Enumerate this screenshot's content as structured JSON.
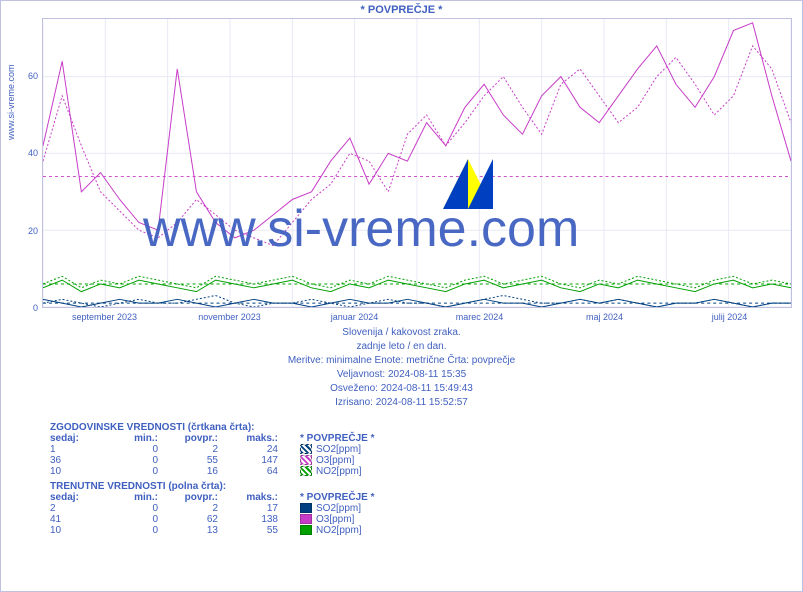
{
  "title": "* POVPREČJE *",
  "side_label": "www.si-vreme.com",
  "chart": {
    "type": "line",
    "ylim": [
      0,
      75
    ],
    "yticks": [
      0,
      20,
      40,
      60
    ],
    "xticks": [
      "september 2023",
      "november 2023",
      "januar 2024",
      "marec 2024",
      "maj 2024",
      "julij 2024"
    ],
    "grid_color": "#e8e8f4",
    "border_color": "#c0c0e0",
    "background_color": "#ffffff",
    "reference_lines": [
      {
        "y": 34,
        "color": "#c83cc8",
        "dash": "3,3"
      },
      {
        "y": 6,
        "color": "#00a000",
        "dash": "3,3"
      },
      {
        "y": 1,
        "color": "#004080",
        "dash": "3,3"
      }
    ],
    "series": [
      {
        "name": "SO2_hist",
        "color": "#004080",
        "dash": "2,2",
        "width": 1,
        "points": [
          1,
          2,
          1,
          0,
          1,
          2,
          1,
          1,
          2,
          3,
          1,
          0,
          1,
          1,
          2,
          1,
          0,
          1,
          2,
          1,
          1,
          0,
          1,
          2,
          3,
          2,
          1,
          1,
          2,
          1,
          2,
          1,
          0,
          1,
          1,
          2,
          1,
          0,
          1,
          1
        ]
      },
      {
        "name": "O3_hist",
        "color": "#c83cc8",
        "dash": "2,2",
        "width": 1,
        "points": [
          38,
          55,
          42,
          30,
          25,
          20,
          18,
          22,
          28,
          24,
          20,
          18,
          16,
          22,
          28,
          32,
          40,
          38,
          30,
          45,
          50,
          42,
          48,
          55,
          60,
          52,
          45,
          58,
          62,
          55,
          48,
          52,
          60,
          65,
          58,
          50,
          55,
          68,
          62,
          48
        ]
      },
      {
        "name": "NO2_hist",
        "color": "#00a000",
        "dash": "2,2",
        "width": 1,
        "points": [
          6,
          8,
          5,
          7,
          6,
          8,
          7,
          6,
          5,
          8,
          7,
          6,
          7,
          8,
          6,
          5,
          7,
          6,
          8,
          7,
          6,
          5,
          7,
          8,
          6,
          7,
          8,
          6,
          5,
          7,
          6,
          8,
          7,
          6,
          5,
          7,
          8,
          6,
          7,
          6
        ]
      },
      {
        "name": "SO2_curr",
        "color": "#004080",
        "dash": "none",
        "width": 1,
        "points": [
          2,
          1,
          0,
          1,
          2,
          1,
          1,
          2,
          1,
          0,
          1,
          2,
          1,
          1,
          0,
          1,
          2,
          1,
          1,
          2,
          1,
          0,
          1,
          2,
          1,
          1,
          0,
          1,
          2,
          1,
          2,
          1,
          0,
          1,
          1,
          2,
          1,
          0,
          1,
          1
        ]
      },
      {
        "name": "O3_curr",
        "color": "#c83cc8",
        "dash": "none",
        "width": 1,
        "points": [
          42,
          64,
          30,
          35,
          28,
          22,
          20,
          62,
          30,
          22,
          18,
          20,
          24,
          28,
          30,
          38,
          44,
          32,
          40,
          38,
          48,
          42,
          52,
          58,
          50,
          45,
          55,
          60,
          52,
          48,
          55,
          62,
          68,
          58,
          52,
          60,
          72,
          74,
          55,
          38
        ]
      },
      {
        "name": "NO2_curr",
        "color": "#00a000",
        "dash": "none",
        "width": 1,
        "points": [
          5,
          7,
          4,
          6,
          5,
          7,
          6,
          5,
          4,
          7,
          6,
          5,
          6,
          7,
          5,
          4,
          6,
          5,
          7,
          6,
          5,
          4,
          6,
          7,
          5,
          6,
          7,
          5,
          4,
          6,
          5,
          7,
          6,
          5,
          4,
          6,
          7,
          5,
          6,
          5
        ]
      }
    ]
  },
  "caption": {
    "l1": "Slovenija / kakovost zraka.",
    "l2": "zadnje leto / en dan.",
    "l3": "Meritve: minimalne  Enote: metrične  Črta: povprečje",
    "l4": "Veljavnost: 2024-08-11 15:35",
    "l5": "Osveženo: 2024-08-11 15:49:43",
    "l6": "Izrisano: 2024-08-11 15:52:57"
  },
  "tables": {
    "hist_title": "ZGODOVINSKE VREDNOSTI (črtkana črta):",
    "curr_title": "TRENUTNE VREDNOSTI (polna črta):",
    "headers": [
      "sedaj:",
      "min.:",
      "povpr.:",
      "maks.:",
      "* POVPREČJE *"
    ],
    "hist_rows": [
      {
        "sedaj": "1",
        "min": "0",
        "povpr": "2",
        "maks": "24",
        "swatch": "#004080",
        "dash": true,
        "label": "SO2[ppm]"
      },
      {
        "sedaj": "36",
        "min": "0",
        "povpr": "55",
        "maks": "147",
        "swatch": "#c83cc8",
        "dash": true,
        "label": "O3[ppm]"
      },
      {
        "sedaj": "10",
        "min": "0",
        "povpr": "16",
        "maks": "64",
        "swatch": "#00a000",
        "dash": true,
        "label": "NO2[ppm]"
      }
    ],
    "curr_rows": [
      {
        "sedaj": "2",
        "min": "0",
        "povpr": "2",
        "maks": "17",
        "swatch": "#004080",
        "dash": false,
        "label": "SO2[ppm]"
      },
      {
        "sedaj": "41",
        "min": "0",
        "povpr": "62",
        "maks": "138",
        "swatch": "#c83cc8",
        "dash": false,
        "label": "O3[ppm]"
      },
      {
        "sedaj": "10",
        "min": "0",
        "povpr": "13",
        "maks": "55",
        "swatch": "#00a000",
        "dash": false,
        "label": "NO2[ppm]"
      }
    ]
  },
  "watermark": "www.si-vreme.com"
}
